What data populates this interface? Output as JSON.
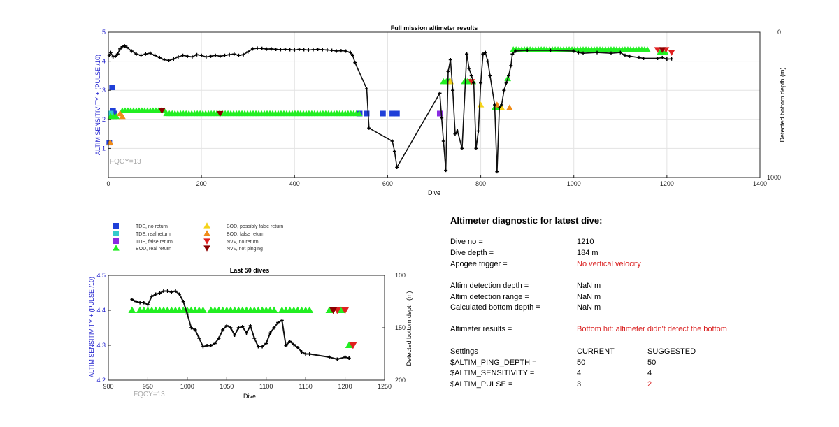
{
  "full_mission": {
    "title": "Full mission altimeter results",
    "xlabel": "Dive",
    "ylabel_left": "ALTIM SENSITIVITY + (PULSE /10)",
    "ylabel_right": "Detected bottom depth (m)",
    "fqcy_note": "FQCY=13"
  },
  "last50": {
    "title": "Last 50 dives",
    "xlabel": "Dive",
    "ylabel_left": "ALTIM SENSITIVITY + (PULSE /10)",
    "ylabel_right": "Detected bottom depth (m)",
    "fqcy_note": "FQCY=13"
  },
  "legend": [
    {
      "label": "TDE, no return",
      "marker": "square",
      "color": "#1f3fd8"
    },
    {
      "label": "TDE, real return",
      "marker": "square",
      "color": "#33cccc"
    },
    {
      "label": "TDE, false return",
      "marker": "square",
      "color": "#8a2be2"
    },
    {
      "label": "BOD, real return",
      "marker": "triangle-up",
      "color": "#22ee22"
    },
    {
      "label": "BOD, possibly false return",
      "marker": "triangle-up",
      "color": "#f5d31a"
    },
    {
      "label": "BOD, false return",
      "marker": "triangle-up",
      "color": "#f08c18"
    },
    {
      "label": "NVV, no return",
      "marker": "triangle-down",
      "color": "#e02020"
    },
    {
      "label": "NVV, not pinging",
      "marker": "triangle-down",
      "color": "#8b0000"
    }
  ],
  "diagnostic": {
    "title": "Altimeter diagnostic for latest dive:",
    "dive_no_label": "Dive no =",
    "dive_no_value": "1210",
    "dive_depth_label": "Dive depth =",
    "dive_depth_value": "184 m",
    "apogee_label": "Apogee trigger =",
    "apogee_value": "No vertical velocity",
    "detect_depth_label": "Altim detection depth =",
    "detect_depth_value": "NaN m",
    "detect_range_label": "Altim detection range =",
    "detect_range_value": "NaN m",
    "calc_bottom_label": "Calculated bottom depth =",
    "calc_bottom_value": "NaN m",
    "results_label": "Altimeter results =",
    "results_value": "Bottom hit: altimeter didn't detect the bottom",
    "settings_label": "Settings",
    "current_header": "CURRENT",
    "suggested_header": "SUGGESTED",
    "ping_depth_label": "$ALTIM_PING_DEPTH =",
    "ping_depth_current": "50",
    "ping_depth_suggested": "50",
    "sensitivity_label": "$ALTIM_SENSITIVITY =",
    "sensitivity_current": "4",
    "sensitivity_suggested": "4",
    "pulse_label": "$ALTIM_PULSE =",
    "pulse_current": "3",
    "pulse_suggested": "2",
    "accent_red": "#d91e1e"
  },
  "chart_data": [
    {
      "type": "scatter",
      "title": "Full mission altimeter results",
      "xlabel": "Dive",
      "ylabel": "ALTIM SENSITIVITY + (PULSE /10)",
      "y2label": "Detected bottom depth (m)",
      "xlim": [
        0,
        1400
      ],
      "ylim": [
        0,
        5
      ],
      "y2lim": [
        0,
        1000
      ],
      "y2_reversed": true,
      "xticks": [
        0,
        200,
        400,
        600,
        800,
        1000,
        1200,
        1400
      ],
      "yticks": [
        1,
        2,
        3,
        4,
        5
      ],
      "y2ticks": [
        0,
        1000
      ],
      "grid": true,
      "markers": [
        {
          "series": "TDE, no return",
          "points": [
            [
              2,
              1.2
            ],
            [
              8,
              3.1
            ],
            [
              10,
              2.3
            ],
            [
              12,
              2.2
            ],
            [
              540,
              2.2
            ],
            [
              555,
              2.2
            ],
            [
              590,
              2.2
            ],
            [
              610,
              2.2
            ],
            [
              620,
              2.2
            ]
          ]
        },
        {
          "series": "TDE, real return",
          "points": [
            [
              5,
              2.2
            ]
          ]
        },
        {
          "series": "TDE, false return",
          "points": [
            [
              712,
              2.2
            ]
          ]
        },
        {
          "series": "BOD, real return",
          "ranges": [
            [
              5,
              18,
              2.1
            ],
            [
              30,
              120,
              2.3
            ],
            [
              125,
              540,
              2.2
            ],
            [
              720,
              735,
              3.3
            ],
            [
              765,
              785,
              3.3
            ],
            [
              830,
              845,
              2.4
            ],
            [
              858,
              862,
              3.4
            ],
            [
              870,
              1160,
              4.4
            ],
            [
              1185,
              1200,
              4.3
            ]
          ]
        },
        {
          "series": "BOD, possibly false return",
          "points": [
            [
              735,
              3.3
            ],
            [
              800,
              2.5
            ],
            [
              845,
              2.4
            ]
          ]
        },
        {
          "series": "BOD, false return",
          "points": [
            [
              4,
              1.2
            ],
            [
              25,
              2.2
            ],
            [
              30,
              2.1
            ],
            [
              835,
              2.5
            ],
            [
              862,
              2.4
            ]
          ]
        },
        {
          "series": "NVV, no return",
          "points": [
            [
              780,
              3.3
            ],
            [
              1180,
              4.4
            ],
            [
              1198,
              4.4
            ],
            [
              1210,
              4.3
            ]
          ]
        },
        {
          "series": "NVV, not pinging",
          "points": [
            [
              115,
              2.3
            ],
            [
              240,
              2.2
            ],
            [
              1190,
              4.4
            ]
          ]
        }
      ],
      "bottom_depth": [
        [
          2,
          160
        ],
        [
          5,
          140
        ],
        [
          10,
          170
        ],
        [
          15,
          165
        ],
        [
          20,
          150
        ],
        [
          25,
          115
        ],
        [
          30,
          100
        ],
        [
          35,
          95
        ],
        [
          40,
          105
        ],
        [
          50,
          130
        ],
        [
          60,
          150
        ],
        [
          70,
          160
        ],
        [
          80,
          150
        ],
        [
          90,
          145
        ],
        [
          100,
          160
        ],
        [
          110,
          175
        ],
        [
          120,
          190
        ],
        [
          130,
          195
        ],
        [
          140,
          185
        ],
        [
          150,
          170
        ],
        [
          160,
          160
        ],
        [
          170,
          165
        ],
        [
          180,
          170
        ],
        [
          190,
          155
        ],
        [
          200,
          160
        ],
        [
          210,
          170
        ],
        [
          220,
          165
        ],
        [
          230,
          160
        ],
        [
          240,
          165
        ],
        [
          250,
          160
        ],
        [
          260,
          155
        ],
        [
          270,
          150
        ],
        [
          280,
          160
        ],
        [
          290,
          155
        ],
        [
          300,
          135
        ],
        [
          310,
          115
        ],
        [
          320,
          110
        ],
        [
          330,
          112
        ],
        [
          340,
          116
        ],
        [
          350,
          115
        ],
        [
          360,
          118
        ],
        [
          370,
          120
        ],
        [
          380,
          118
        ],
        [
          390,
          120
        ],
        [
          400,
          122
        ],
        [
          410,
          118
        ],
        [
          420,
          120
        ],
        [
          430,
          122
        ],
        [
          440,
          120
        ],
        [
          450,
          118
        ],
        [
          460,
          120
        ],
        [
          470,
          122
        ],
        [
          480,
          125
        ],
        [
          490,
          130
        ],
        [
          500,
          128
        ],
        [
          510,
          130
        ],
        [
          520,
          140
        ],
        [
          525,
          160
        ],
        [
          530,
          210
        ],
        [
          555,
          390
        ],
        [
          560,
          660
        ],
        [
          610,
          750
        ],
        [
          615,
          820
        ],
        [
          620,
          930
        ],
        [
          712,
          420
        ],
        [
          716,
          590
        ],
        [
          720,
          750
        ],
        [
          725,
          950
        ],
        [
          730,
          270
        ],
        [
          735,
          190
        ],
        [
          740,
          400
        ],
        [
          745,
          700
        ],
        [
          750,
          680
        ],
        [
          760,
          800
        ],
        [
          770,
          150
        ],
        [
          775,
          250
        ],
        [
          780,
          300
        ],
        [
          785,
          350
        ],
        [
          790,
          800
        ],
        [
          795,
          680
        ],
        [
          800,
          350
        ],
        [
          805,
          150
        ],
        [
          810,
          140
        ],
        [
          815,
          200
        ],
        [
          820,
          300
        ],
        [
          830,
          500
        ],
        [
          835,
          960
        ],
        [
          840,
          520
        ],
        [
          845,
          500
        ],
        [
          850,
          400
        ],
        [
          855,
          350
        ],
        [
          860,
          300
        ],
        [
          865,
          230
        ],
        [
          868,
          150
        ],
        [
          875,
          130
        ],
        [
          900,
          125
        ],
        [
          950,
          125
        ],
        [
          1000,
          130
        ],
        [
          1010,
          140
        ],
        [
          1020,
          145
        ],
        [
          1050,
          140
        ],
        [
          1080,
          145
        ],
        [
          1100,
          140
        ],
        [
          1110,
          160
        ],
        [
          1120,
          165
        ],
        [
          1140,
          175
        ],
        [
          1150,
          180
        ],
        [
          1180,
          180
        ],
        [
          1190,
          175
        ],
        [
          1200,
          185
        ],
        [
          1210,
          184
        ]
      ]
    },
    {
      "type": "scatter",
      "title": "Last 50 dives",
      "xlabel": "Dive",
      "ylabel": "ALTIM SENSITIVITY + (PULSE /10)",
      "y2label": "Detected bottom depth (m)",
      "xlim": [
        900,
        1250
      ],
      "ylim": [
        4.2,
        4.5
      ],
      "y2lim": [
        100,
        200
      ],
      "y2_reversed": true,
      "xticks": [
        900,
        950,
        1000,
        1050,
        1100,
        1150,
        1200,
        1250
      ],
      "yticks": [
        4.2,
        4.3,
        4.4,
        4.5
      ],
      "y2ticks": [
        100,
        150,
        200
      ],
      "grid": false,
      "markers": [
        {
          "series": "BOD, real return",
          "points": [
            [
              930,
              4.4
            ],
            [
              940,
              4.4
            ],
            [
              945,
              4.4
            ],
            [
              950,
              4.4
            ],
            [
              955,
              4.4
            ],
            [
              960,
              4.4
            ],
            [
              965,
              4.4
            ],
            [
              970,
              4.4
            ],
            [
              975,
              4.4
            ],
            [
              980,
              4.4
            ],
            [
              985,
              4.4
            ],
            [
              990,
              4.4
            ],
            [
              995,
              4.4
            ],
            [
              1000,
              4.4
            ],
            [
              1005,
              4.4
            ],
            [
              1010,
              4.4
            ],
            [
              1015,
              4.4
            ],
            [
              1020,
              4.4
            ],
            [
              1030,
              4.4
            ],
            [
              1035,
              4.4
            ],
            [
              1040,
              4.4
            ],
            [
              1045,
              4.4
            ],
            [
              1050,
              4.4
            ],
            [
              1055,
              4.4
            ],
            [
              1060,
              4.4
            ],
            [
              1065,
              4.4
            ],
            [
              1070,
              4.4
            ],
            [
              1075,
              4.4
            ],
            [
              1080,
              4.4
            ],
            [
              1085,
              4.4
            ],
            [
              1090,
              4.4
            ],
            [
              1095,
              4.4
            ],
            [
              1100,
              4.4
            ],
            [
              1105,
              4.4
            ],
            [
              1110,
              4.4
            ],
            [
              1120,
              4.4
            ],
            [
              1125,
              4.4
            ],
            [
              1130,
              4.4
            ],
            [
              1135,
              4.4
            ],
            [
              1140,
              4.4
            ],
            [
              1145,
              4.4
            ],
            [
              1150,
              4.4
            ],
            [
              1155,
              4.4
            ],
            [
              1180,
              4.4
            ],
            [
              1195,
              4.4
            ],
            [
              1205,
              4.3
            ]
          ]
        },
        {
          "series": "NVV, no return",
          "points": [
            [
              1190,
              4.4
            ],
            [
              1200,
              4.4
            ],
            [
              1210,
              4.3
            ]
          ]
        },
        {
          "series": "NVV, not pinging",
          "points": [
            [
              1185,
              4.4
            ]
          ]
        }
      ],
      "bottom_depth": [
        [
          930,
          123
        ],
        [
          935,
          125
        ],
        [
          940,
          126
        ],
        [
          945,
          126
        ],
        [
          950,
          128
        ],
        [
          955,
          120
        ],
        [
          960,
          118
        ],
        [
          965,
          117
        ],
        [
          970,
          115
        ],
        [
          975,
          115
        ],
        [
          980,
          116
        ],
        [
          985,
          115
        ],
        [
          990,
          118
        ],
        [
          995,
          125
        ],
        [
          1000,
          137
        ],
        [
          1005,
          150
        ],
        [
          1010,
          152
        ],
        [
          1015,
          160
        ],
        [
          1020,
          168
        ],
        [
          1025,
          167
        ],
        [
          1030,
          167
        ],
        [
          1035,
          165
        ],
        [
          1040,
          160
        ],
        [
          1045,
          152
        ],
        [
          1050,
          148
        ],
        [
          1055,
          150
        ],
        [
          1060,
          157
        ],
        [
          1065,
          150
        ],
        [
          1070,
          149
        ],
        [
          1075,
          155
        ],
        [
          1080,
          148
        ],
        [
          1085,
          160
        ],
        [
          1090,
          168
        ],
        [
          1095,
          168
        ],
        [
          1100,
          165
        ],
        [
          1105,
          155
        ],
        [
          1110,
          150
        ],
        [
          1115,
          145
        ],
        [
          1120,
          143
        ],
        [
          1125,
          167
        ],
        [
          1130,
          163
        ],
        [
          1135,
          166
        ],
        [
          1140,
          169
        ],
        [
          1145,
          173
        ],
        [
          1150,
          175
        ],
        [
          1155,
          175
        ],
        [
          1180,
          178
        ],
        [
          1190,
          180
        ],
        [
          1200,
          178
        ],
        [
          1205,
          179
        ]
      ]
    }
  ]
}
